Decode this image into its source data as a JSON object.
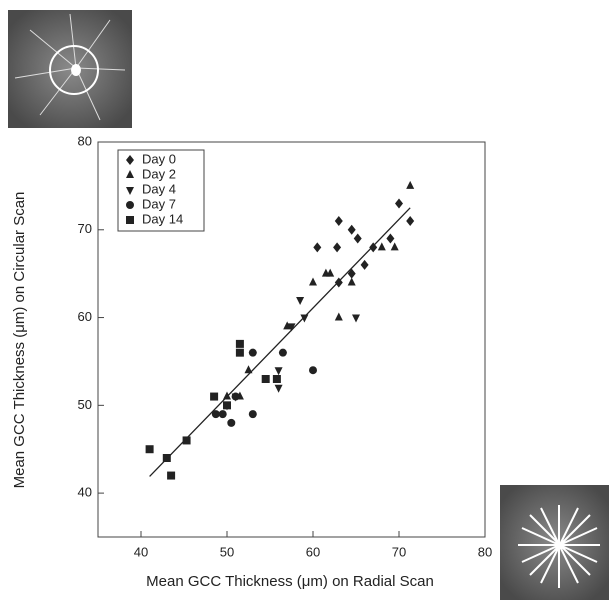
{
  "chart_data": {
    "type": "scatter",
    "xlabel": "Mean GCC Thickness (μm) on Radial Scan",
    "ylabel": "Mean GCC Thickness (μm) on Circular Scan",
    "xlim": [
      35,
      80
    ],
    "ylim": [
      35,
      80
    ],
    "xticks": [
      40,
      50,
      60,
      70,
      80
    ],
    "yticks": [
      40,
      50,
      60,
      70,
      80
    ],
    "grid": false,
    "legend": "upper-left",
    "series": [
      {
        "name": "Day 0",
        "color": "#222222",
        "marker": "diamond",
        "x": [
          63,
          64.5,
          65.2,
          67,
          69,
          70,
          71.3,
          60.5,
          62.8,
          66,
          64.5,
          63
        ],
        "y": [
          71,
          70,
          69,
          68,
          69,
          73,
          71,
          68,
          68,
          66,
          65,
          64
        ]
      },
      {
        "name": "Day 2",
        "color": "#222222",
        "marker": "triangle-up",
        "x": [
          71.3,
          69.5,
          68,
          62,
          61.5,
          60,
          64.5,
          63,
          57,
          52.5,
          51.5,
          50
        ],
        "y": [
          75,
          68,
          68,
          65,
          65,
          64,
          64,
          60,
          59,
          54,
          51,
          51
        ]
      },
      {
        "name": "Day 4",
        "color": "#222222",
        "marker": "triangle-down",
        "x": [
          58.5,
          59,
          65,
          57.5,
          56,
          56,
          51,
          50
        ],
        "y": [
          62,
          60,
          60,
          59,
          54,
          52,
          51,
          50
        ]
      },
      {
        "name": "Day 7",
        "color": "#222222",
        "marker": "circle",
        "x": [
          48.7,
          49.5,
          50.5,
          53,
          53,
          56.5,
          60,
          51
        ],
        "y": [
          49,
          49,
          48,
          49,
          56,
          56,
          54,
          51
        ]
      },
      {
        "name": "Day 14",
        "color": "#222222",
        "marker": "square",
        "x": [
          41,
          43,
          43.5,
          45.3,
          48.5,
          50,
          51.5,
          51.5,
          54.5,
          55.8
        ],
        "y": [
          45,
          44,
          42,
          46,
          51,
          50,
          57,
          56,
          53,
          53
        ]
      }
    ],
    "regression": {
      "x": [
        41,
        71.3
      ],
      "y": [
        41.9,
        72.5
      ]
    }
  }
}
